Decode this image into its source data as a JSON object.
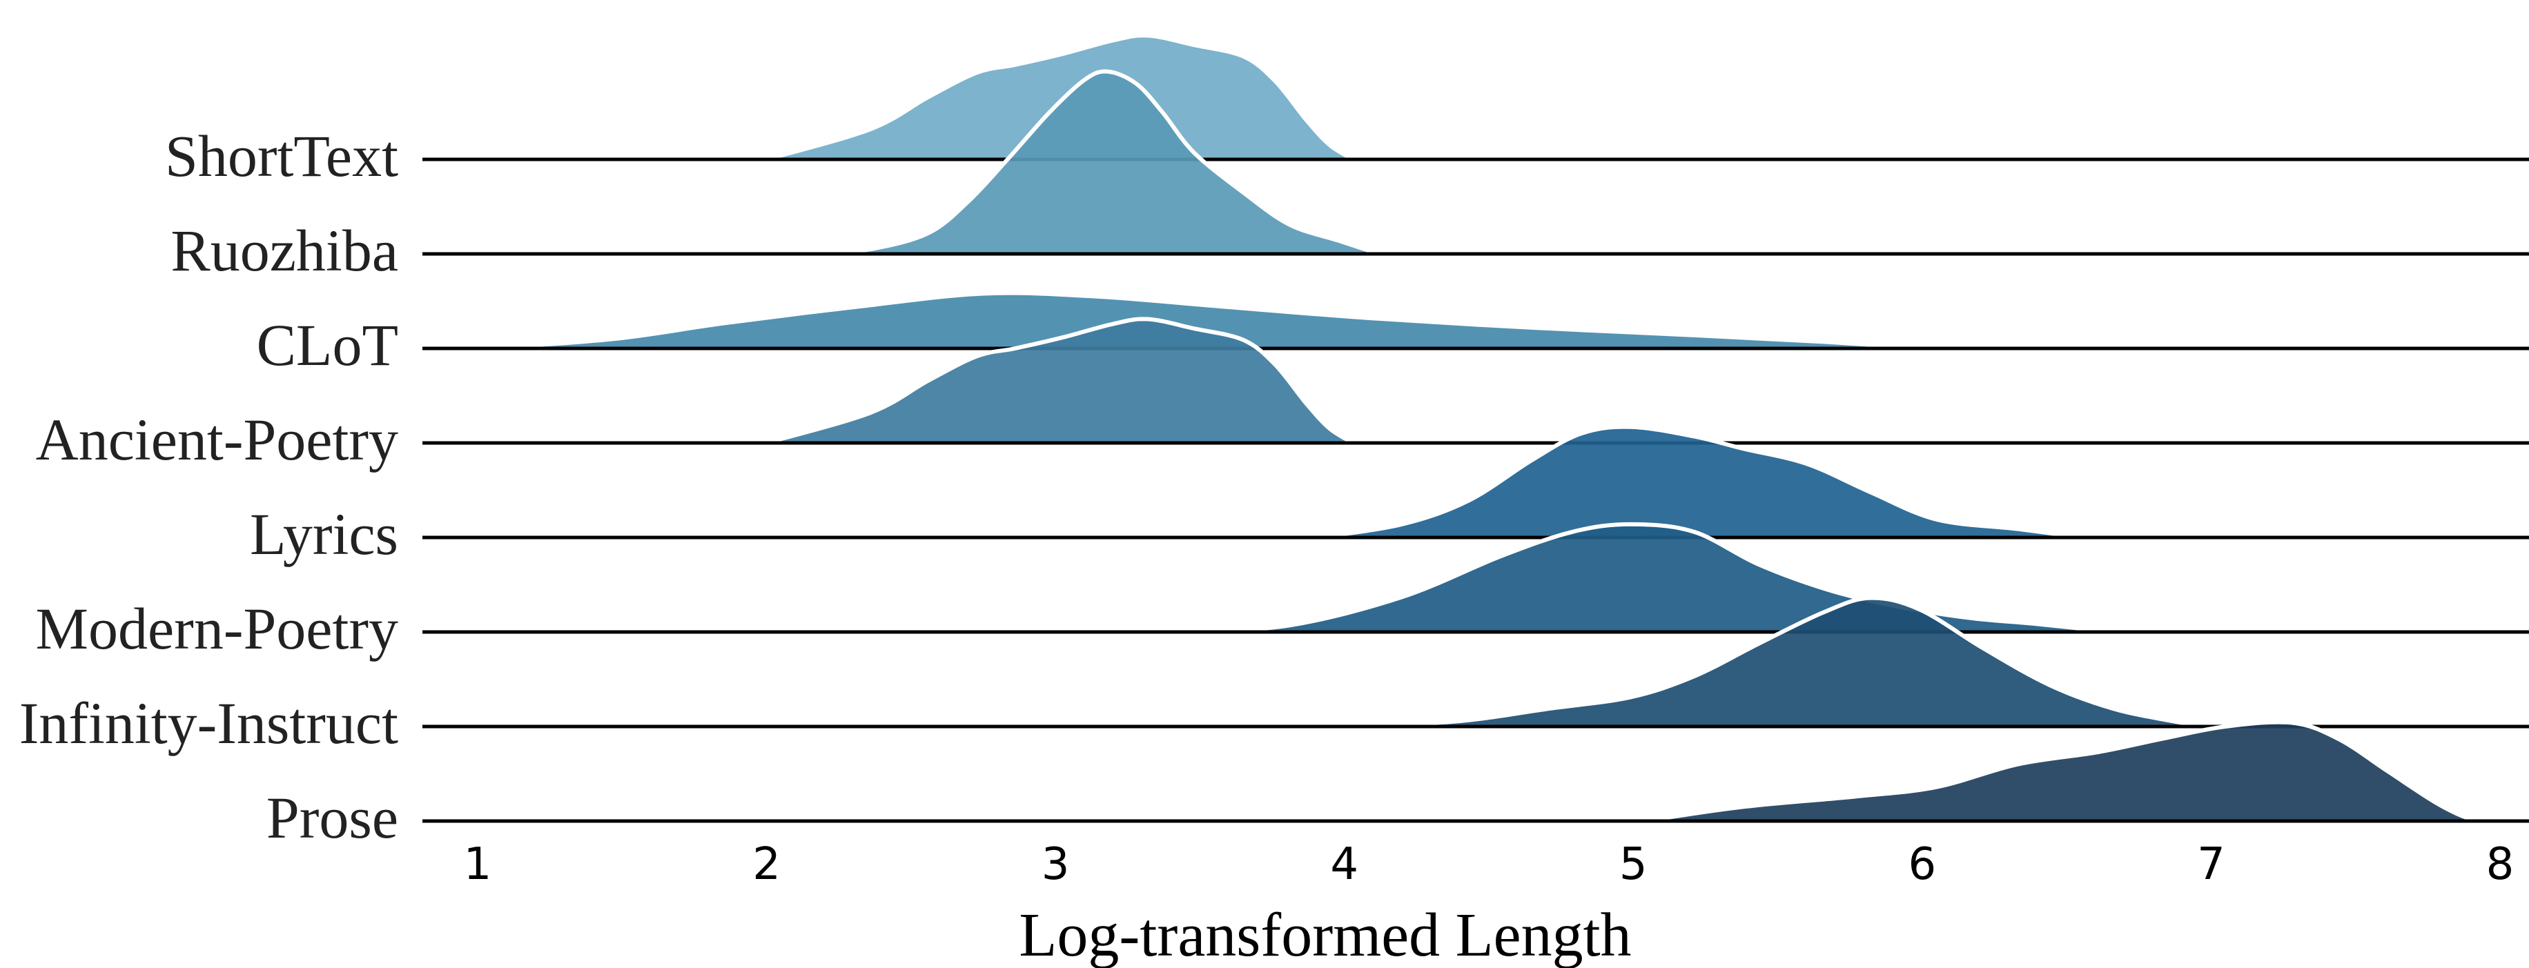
{
  "chart_data": {
    "type": "area",
    "subtype": "ridgeline",
    "title": "",
    "xlabel": "Log-transformed Length",
    "ylabel": "",
    "xlim": [
      1,
      8
    ],
    "xticks": [
      "1",
      "2",
      "3",
      "4",
      "5",
      "6",
      "7",
      "8"
    ],
    "grid": false,
    "legend": "none",
    "density_unit": "relative to ridge spacing",
    "series": [
      {
        "name": "ShortText",
        "color": "#72adc8",
        "points": [
          [
            2.0,
            0
          ],
          [
            2.36,
            0.32
          ],
          [
            2.56,
            0.66
          ],
          [
            2.73,
            0.92
          ],
          [
            2.86,
            1.0
          ],
          [
            3.03,
            1.12
          ],
          [
            3.2,
            1.26
          ],
          [
            3.32,
            1.31
          ],
          [
            3.48,
            1.21
          ],
          [
            3.65,
            1.09
          ],
          [
            3.76,
            0.83
          ],
          [
            3.87,
            0.41
          ],
          [
            3.95,
            0.15
          ],
          [
            4.03,
            0
          ]
        ]
      },
      {
        "name": "Ruozhiba",
        "color": "#5a9ab7",
        "points": [
          [
            2.17,
            0
          ],
          [
            2.36,
            0.05
          ],
          [
            2.56,
            0.22
          ],
          [
            2.7,
            0.56
          ],
          [
            2.84,
            1.02
          ],
          [
            2.98,
            1.5
          ],
          [
            3.1,
            1.84
          ],
          [
            3.18,
            1.93
          ],
          [
            3.28,
            1.8
          ],
          [
            3.37,
            1.5
          ],
          [
            3.48,
            1.07
          ],
          [
            3.65,
            0.65
          ],
          [
            3.81,
            0.31
          ],
          [
            3.98,
            0.14
          ],
          [
            4.12,
            0
          ]
        ]
      },
      {
        "name": "CLoT",
        "color": "#4589ab",
        "points": [
          [
            1.02,
            0
          ],
          [
            1.47,
            0.1
          ],
          [
            1.86,
            0.27
          ],
          [
            2.31,
            0.44
          ],
          [
            2.75,
            0.58
          ],
          [
            3.14,
            0.55
          ],
          [
            3.59,
            0.44
          ],
          [
            4.09,
            0.32
          ],
          [
            4.65,
            0.22
          ],
          [
            5.21,
            0.14
          ],
          [
            5.66,
            0.07
          ],
          [
            6.0,
            0
          ]
        ]
      },
      {
        "name": "Ancient-Poetry",
        "color": "#3f7ca0",
        "points": [
          [
            2.0,
            0
          ],
          [
            2.36,
            0.32
          ],
          [
            2.56,
            0.66
          ],
          [
            2.73,
            0.92
          ],
          [
            2.86,
            1.0
          ],
          [
            3.03,
            1.12
          ],
          [
            3.2,
            1.26
          ],
          [
            3.32,
            1.31
          ],
          [
            3.48,
            1.21
          ],
          [
            3.65,
            1.09
          ],
          [
            3.76,
            0.83
          ],
          [
            3.87,
            0.41
          ],
          [
            3.95,
            0.15
          ],
          [
            4.03,
            0
          ]
        ]
      },
      {
        "name": "Lyrics",
        "color": "#1f6291",
        "points": [
          [
            3.91,
            0
          ],
          [
            4.2,
            0.14
          ],
          [
            4.43,
            0.39
          ],
          [
            4.65,
            0.82
          ],
          [
            4.82,
            1.1
          ],
          [
            4.99,
            1.17
          ],
          [
            5.21,
            1.07
          ],
          [
            5.38,
            0.94
          ],
          [
            5.6,
            0.78
          ],
          [
            5.82,
            0.48
          ],
          [
            6.05,
            0.19
          ],
          [
            6.33,
            0.09
          ],
          [
            6.55,
            0
          ]
        ]
      },
      {
        "name": "Modern-Poetry",
        "color": "#205c87",
        "points": [
          [
            3.45,
            0
          ],
          [
            3.81,
            0.07
          ],
          [
            4.2,
            0.37
          ],
          [
            4.54,
            0.8
          ],
          [
            4.79,
            1.06
          ],
          [
            4.99,
            1.14
          ],
          [
            5.21,
            1.06
          ],
          [
            5.43,
            0.72
          ],
          [
            5.66,
            0.46
          ],
          [
            5.88,
            0.29
          ],
          [
            6.16,
            0.15
          ],
          [
            6.38,
            0.09
          ],
          [
            6.66,
            0
          ]
        ]
      },
      {
        "name": "Infinity-Instruct",
        "color": "#1e4e73",
        "points": [
          [
            3.93,
            0
          ],
          [
            4.37,
            0.05
          ],
          [
            4.71,
            0.19
          ],
          [
            4.99,
            0.31
          ],
          [
            5.21,
            0.53
          ],
          [
            5.43,
            0.87
          ],
          [
            5.66,
            1.21
          ],
          [
            5.82,
            1.36
          ],
          [
            5.99,
            1.24
          ],
          [
            6.21,
            0.83
          ],
          [
            6.44,
            0.44
          ],
          [
            6.66,
            0.19
          ],
          [
            6.88,
            0.05
          ],
          [
            7.0,
            0
          ]
        ]
      },
      {
        "name": "Prose",
        "color": "#1e3f5c",
        "points": [
          [
            5.04,
            0
          ],
          [
            5.38,
            0.15
          ],
          [
            5.77,
            0.26
          ],
          [
            6.05,
            0.36
          ],
          [
            6.33,
            0.6
          ],
          [
            6.61,
            0.73
          ],
          [
            6.83,
            0.87
          ],
          [
            7.05,
            1.0
          ],
          [
            7.28,
            1.04
          ],
          [
            7.44,
            0.87
          ],
          [
            7.61,
            0.53
          ],
          [
            7.78,
            0.19
          ],
          [
            7.89,
            0.03
          ],
          [
            7.97,
            0
          ]
        ]
      }
    ]
  }
}
